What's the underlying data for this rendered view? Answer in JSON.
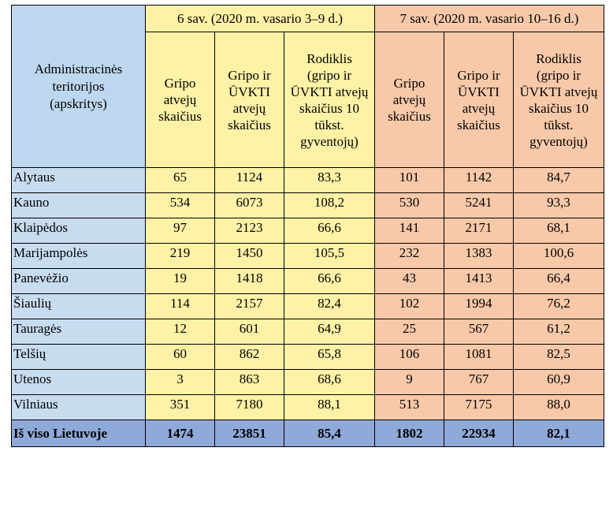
{
  "header": {
    "region_label": "Administracinės teritorijos (apskritys)",
    "week6": "6 sav. (2020 m.  vasario 3–9 d.)",
    "week7": "7 sav. (2020 m. vasario 10–16 d.)",
    "col_flu": "Gripo atvejų skaičius",
    "col_flu_uvkti": "Gripo ir ŪVKTI atvejų skaičius",
    "col_rate": "Rodiklis (gripo ir ŪVKTI atvejų skaičius 10 tūkst. gyventojų)"
  },
  "rows": [
    {
      "name": "Alytaus",
      "v": [
        "65",
        "1124",
        "83,3",
        "101",
        "1142",
        "84,7"
      ]
    },
    {
      "name": "Kauno",
      "v": [
        "534",
        "6073",
        "108,2",
        "530",
        "5241",
        "93,3"
      ]
    },
    {
      "name": "Klaipėdos",
      "v": [
        "97",
        "2123",
        "66,6",
        "141",
        "2171",
        "68,1"
      ]
    },
    {
      "name": "Marijampolės",
      "v": [
        "219",
        "1450",
        "105,5",
        "232",
        "1383",
        "100,6"
      ]
    },
    {
      "name": "Panevėžio",
      "v": [
        "19",
        "1418",
        "66,6",
        "43",
        "1413",
        "66,4"
      ]
    },
    {
      "name": "Šiaulių",
      "v": [
        "114",
        "2157",
        "82,4",
        "102",
        "1994",
        "76,2"
      ]
    },
    {
      "name": "Tauragės",
      "v": [
        "12",
        "601",
        "64,9",
        "25",
        "567",
        "61,2"
      ]
    },
    {
      "name": "Telšių",
      "v": [
        "60",
        "862",
        "65,8",
        "106",
        "1081",
        "82,5"
      ]
    },
    {
      "name": "Utenos",
      "v": [
        "3",
        "863",
        "68,6",
        "9",
        "767",
        "60,9"
      ]
    },
    {
      "name": "Vilniaus",
      "v": [
        "351",
        "7180",
        "88,1",
        "513",
        "7175",
        "88,0"
      ]
    }
  ],
  "total": {
    "name": "Iš viso Lietuvoje",
    "v": [
      "1474",
      "23851",
      "85,4",
      "1802",
      "22934",
      "82,1"
    ]
  },
  "colors": {
    "blue": "#bdd7ee",
    "yellow": "#fff2a7",
    "pink": "#f8c9a9",
    "total": "#8fa9d8"
  }
}
